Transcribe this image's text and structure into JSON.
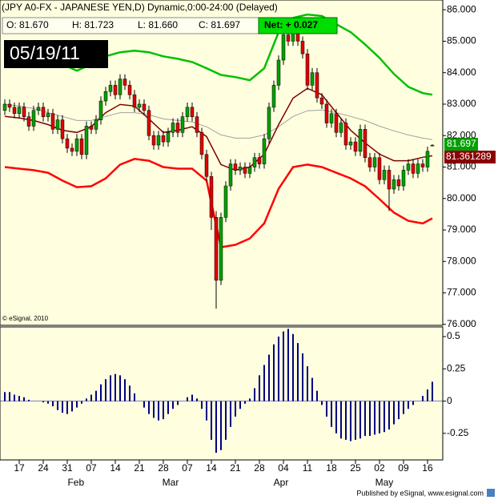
{
  "header": {
    "title": "(JPY A0-FX - JAPANESE YEN,D) Dynamic,0:00-24:00 (Delayed)",
    "open": "O: 81.670",
    "high": "H: 81.723",
    "low": "L: 81.660",
    "close": "C: 81.697",
    "net": "Net: + 0.027",
    "date": "05/19/11",
    "copyright": "© eSignal, 2010",
    "last_close": "81.697",
    "last_ma": "81.361289",
    "footer": "Published by eSignal, www.esignal.com"
  },
  "chart_data": [
    {
      "type": "candlestick",
      "up_color": "#00a000",
      "down_color": "#e00000",
      "xlim": [
        -1,
        91.17
      ],
      "ylim": [
        75.97,
        86.31
      ],
      "yticks": [
        {
          "value": 76,
          "label": "76.000"
        },
        {
          "value": 77,
          "label": "77.000"
        },
        {
          "value": 78,
          "label": "78.000"
        },
        {
          "value": 79,
          "label": "79.000"
        },
        {
          "value": 80,
          "label": "80.000"
        },
        {
          "value": 81,
          "label": "81.000"
        },
        {
          "value": 82,
          "label": "82.000"
        },
        {
          "value": 83,
          "label": "83.000"
        },
        {
          "value": 84,
          "label": "84.000"
        },
        {
          "value": 85,
          "label": "85.000"
        },
        {
          "value": 86,
          "label": "86.000"
        }
      ],
      "open": [
        82.8,
        83.0,
        82.9,
        82.7,
        82.9,
        82.6,
        82.3,
        82.8,
        82.9,
        82.6,
        82.7,
        82.2,
        82.5,
        81.9,
        81.6,
        81.5,
        81.9,
        81.4,
        82.3,
        82.2,
        82.5,
        83.1,
        83.4,
        83.6,
        83.3,
        83.8,
        83.6,
        83.3,
        82.9,
        83.0,
        82.8,
        82.0,
        81.7,
        82.0,
        81.8,
        82.1,
        82.4,
        82.1,
        82.6,
        82.9,
        82.6,
        82.1,
        81.4,
        80.7,
        79.4,
        77.4,
        79.4,
        80.4,
        81.1,
        80.9,
        81.0,
        80.8,
        81.0,
        81.3,
        81.1,
        81.9,
        82.9,
        83.6,
        84.4,
        85.2,
        85.0,
        85.3,
        85.0,
        84.6,
        83.6,
        84.0,
        83.2,
        83.0,
        82.4,
        82.7,
        82.1,
        82.4,
        81.7,
        81.8,
        81.5,
        82.2,
        81.3,
        81.0,
        81.3,
        80.6,
        80.9,
        80.3,
        80.6,
        80.4,
        80.9,
        81.1,
        80.8,
        81.1,
        81.0,
        81.67
      ],
      "high": [
        83.15,
        83.15,
        83.05,
        83.05,
        83.05,
        82.75,
        82.95,
        83.05,
        83.05,
        82.85,
        82.85,
        82.65,
        82.65,
        82.05,
        81.75,
        82.05,
        82.05,
        82.45,
        82.45,
        82.65,
        83.25,
        83.55,
        83.75,
        83.75,
        83.95,
        83.95,
        83.75,
        83.45,
        83.15,
        83.15,
        82.95,
        82.15,
        82.15,
        82.15,
        82.25,
        82.55,
        82.55,
        82.75,
        83.05,
        83.05,
        82.75,
        82.25,
        81.55,
        80.85,
        79.6,
        79.55,
        80.55,
        81.25,
        81.25,
        81.15,
        81.15,
        81.15,
        81.45,
        81.45,
        82.05,
        83.05,
        83.75,
        84.55,
        85.35,
        85.5,
        85.5,
        85.45,
        85.15,
        84.75,
        84.15,
        84.15,
        83.35,
        83.15,
        82.85,
        82.85,
        82.55,
        82.55,
        81.95,
        81.95,
        82.35,
        82.35,
        81.45,
        81.45,
        81.45,
        81.05,
        81.05,
        80.75,
        80.75,
        81.05,
        81.25,
        81.25,
        81.25,
        81.25,
        81.65,
        81.723
      ],
      "low": [
        82.65,
        82.75,
        82.55,
        82.55,
        82.45,
        82.15,
        82.15,
        82.65,
        82.45,
        82.45,
        82.05,
        82.05,
        81.75,
        81.45,
        81.35,
        81.35,
        81.25,
        81.25,
        82.05,
        82.05,
        82.35,
        82.95,
        83.25,
        83.15,
        83.15,
        83.45,
        83.15,
        82.75,
        82.75,
        82.65,
        81.85,
        81.55,
        81.55,
        81.65,
        81.65,
        81.95,
        81.95,
        81.95,
        82.45,
        82.45,
        81.95,
        81.25,
        80.55,
        79.0,
        76.5,
        77.25,
        79.25,
        80.25,
        80.75,
        80.75,
        80.65,
        80.65,
        80.85,
        80.95,
        80.95,
        81.75,
        82.75,
        83.45,
        84.25,
        84.85,
        84.85,
        84.85,
        84.45,
        83.45,
        83.45,
        83.05,
        82.85,
        82.25,
        82.25,
        81.95,
        81.95,
        81.55,
        81.55,
        81.35,
        81.35,
        81.15,
        80.85,
        80.85,
        80.45,
        80.45,
        79.6,
        80.15,
        80.25,
        80.25,
        80.75,
        80.65,
        80.65,
        80.85,
        80.85,
        81.66
      ],
      "close": [
        83.0,
        82.9,
        82.7,
        82.9,
        82.6,
        82.3,
        82.8,
        82.9,
        82.6,
        82.7,
        82.2,
        82.5,
        81.9,
        81.6,
        81.5,
        81.9,
        81.4,
        82.3,
        82.2,
        82.5,
        83.1,
        83.4,
        83.6,
        83.3,
        83.8,
        83.6,
        83.3,
        82.9,
        83.0,
        82.8,
        82.0,
        81.7,
        82.0,
        81.8,
        82.1,
        82.4,
        82.1,
        82.6,
        82.9,
        82.6,
        82.1,
        81.4,
        80.7,
        79.4,
        77.4,
        79.4,
        80.4,
        81.1,
        80.9,
        81.0,
        80.8,
        81.0,
        81.3,
        81.1,
        81.9,
        82.9,
        83.6,
        84.4,
        85.2,
        85.0,
        85.3,
        85.0,
        84.6,
        83.6,
        84.0,
        83.2,
        83.0,
        82.4,
        82.7,
        82.1,
        82.4,
        81.7,
        81.8,
        81.5,
        82.2,
        81.3,
        81.0,
        81.3,
        80.6,
        80.9,
        80.3,
        80.6,
        80.4,
        80.9,
        81.1,
        80.8,
        81.1,
        81.0,
        81.5,
        81.697
      ],
      "line_x": [
        0,
        3,
        6,
        9,
        12,
        15,
        18,
        21,
        24,
        27,
        30,
        33,
        36,
        39,
        42,
        45,
        48,
        51,
        54,
        57,
        60,
        63,
        66,
        69,
        72,
        75,
        78,
        81,
        84,
        87,
        89
      ],
      "series": [
        {
          "color": "#a0a0a0",
          "values": [
            82.99,
            82.94,
            82.86,
            82.73,
            82.61,
            82.48,
            82.48,
            82.61,
            82.73,
            82.73,
            82.66,
            82.53,
            82.48,
            82.43,
            82.28,
            82.02,
            81.92,
            81.92,
            82.02,
            82.28,
            82.61,
            82.79,
            82.81,
            82.73,
            82.61,
            82.48,
            82.3,
            82.15,
            82.02,
            81.92,
            81.87
          ]
        },
        {
          "color": "#800000",
          "values": [
            82.61,
            82.56,
            82.48,
            82.35,
            82.17,
            82.1,
            82.28,
            82.73,
            82.99,
            82.94,
            82.53,
            82.1,
            82.17,
            82.28,
            81.97,
            81.08,
            80.9,
            81.0,
            81.41,
            82.35,
            83.19,
            83.5,
            83.3,
            82.73,
            82.17,
            81.77,
            81.41,
            81.2,
            81.2,
            81.31,
            81.36
          ]
        },
        {
          "color": "#00c000",
          "values": [
            84.27,
            84.32,
            84.32,
            84.32,
            84.27,
            84.06,
            84.27,
            84.52,
            84.65,
            84.7,
            84.65,
            84.52,
            84.44,
            84.34,
            84.14,
            83.93,
            83.86,
            83.76,
            84.14,
            85.29,
            85.74,
            85.85,
            85.8,
            85.54,
            85.29,
            84.9,
            84.47,
            83.96,
            83.55,
            83.35,
            83.3
          ]
        },
        {
          "color": "#ff0000",
          "values": [
            81.0,
            80.95,
            80.9,
            80.82,
            80.57,
            80.36,
            80.39,
            80.64,
            81.08,
            81.26,
            81.2,
            81.0,
            80.95,
            80.95,
            80.57,
            78.45,
            78.53,
            78.73,
            79.21,
            80.31,
            81.0,
            81.08,
            81.0,
            80.82,
            80.64,
            80.39,
            79.98,
            79.55,
            79.29,
            79.21,
            79.37
          ]
        }
      ]
    },
    {
      "type": "bar",
      "color": "#000080",
      "xlim": [
        -1,
        91.17
      ],
      "ylim": [
        -0.456,
        0.575
      ],
      "yticks": [
        0.5,
        0.25,
        0,
        -0.25
      ],
      "values": [
        0.07,
        0.07,
        0.05,
        0.04,
        0.03,
        0.01,
        0.0,
        0.0,
        -0.01,
        -0.02,
        -0.04,
        -0.07,
        -0.09,
        -0.1,
        -0.08,
        -0.05,
        -0.02,
        0.02,
        0.05,
        0.08,
        0.13,
        0.17,
        0.2,
        0.21,
        0.2,
        0.17,
        0.12,
        0.06,
        0.0,
        -0.05,
        -0.1,
        -0.13,
        -0.15,
        -0.14,
        -0.1,
        -0.06,
        -0.03,
        0.0,
        0.03,
        0.05,
        0.02,
        -0.06,
        -0.15,
        -0.3,
        -0.4,
        -0.38,
        -0.3,
        -0.2,
        -0.12,
        -0.06,
        -0.02,
        0.02,
        0.1,
        0.2,
        0.28,
        0.36,
        0.44,
        0.5,
        0.54,
        0.56,
        0.52,
        0.45,
        0.37,
        0.27,
        0.18,
        0.08,
        -0.03,
        -0.12,
        -0.2,
        -0.25,
        -0.29,
        -0.3,
        -0.31,
        -0.3,
        -0.29,
        -0.27,
        -0.27,
        -0.26,
        -0.25,
        -0.24,
        -0.22,
        -0.18,
        -0.14,
        -0.1,
        -0.06,
        -0.03,
        0.0,
        0.04,
        0.09,
        0.15
      ],
      "xticks": [
        {
          "value": 3,
          "label": "17"
        },
        {
          "value": 8,
          "label": "24"
        },
        {
          "value": 13,
          "label": "31"
        },
        {
          "value": 18,
          "label": "07"
        },
        {
          "value": 23,
          "label": "14"
        },
        {
          "value": 28,
          "label": "21"
        },
        {
          "value": 33,
          "label": "28"
        },
        {
          "value": 38,
          "label": "07"
        },
        {
          "value": 43,
          "label": "14"
        },
        {
          "value": 48,
          "label": "21"
        },
        {
          "value": 53,
          "label": "28"
        },
        {
          "value": 58,
          "label": "04"
        },
        {
          "value": 63,
          "label": "11"
        },
        {
          "value": 68,
          "label": "18"
        },
        {
          "value": 73,
          "label": "25"
        },
        {
          "value": 78,
          "label": "02"
        },
        {
          "value": 83,
          "label": "09"
        },
        {
          "value": 88,
          "label": "16"
        }
      ],
      "months": [
        {
          "value": 14.8,
          "label": "Feb"
        },
        {
          "value": 34.5,
          "label": "Mar"
        },
        {
          "value": 57.5,
          "label": "Apr"
        },
        {
          "value": 79,
          "label": "May"
        }
      ]
    }
  ]
}
